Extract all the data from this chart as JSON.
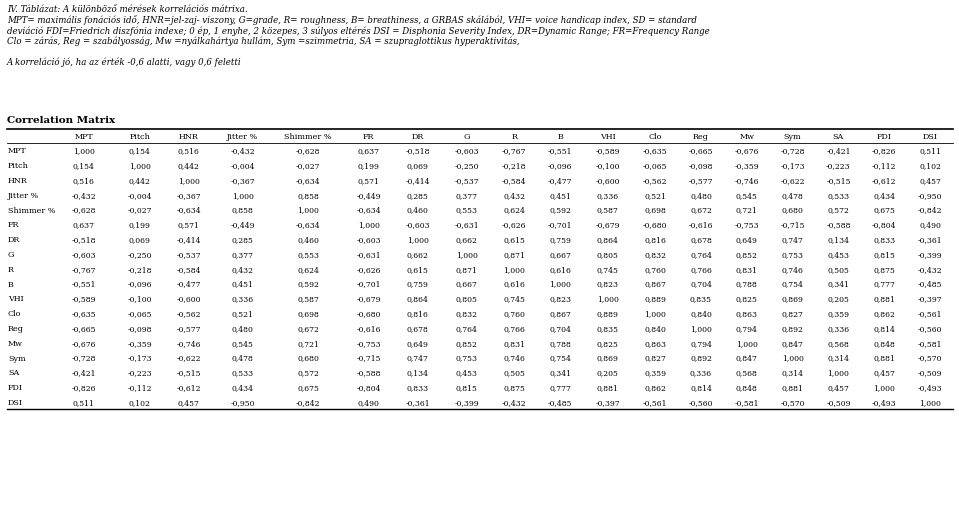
{
  "title_line1": "IV. Táblázat: A különböző mérések korrelációs mátrixa.",
  "title_line2": "MPT= maximális fonációs idő, HNR=jel-zaj- viszony, G=grade, R= roughness, B= breathiness, a GRBAS skálából, VHI= voice handicap index, SD = standard",
  "title_line3": "deviáció FDI=Friedrich diszfónia indexe; 0 ép, 1 enyhe, 2 közepes, 3 súlyos eltérés DSI = Disphonia Severity Index, DR=Dynamic Range; FR=Frequency Range",
  "title_line4": "Clo = zárás, Reg = szabályosság, Mw =nyálkahártya hullám, Sym =szimmetria, SA = szupraglottikus hyperaktivitás,",
  "title_line5": "A korreláció jó, ha az érték -0,6 alatti, vagy 0,6 feletti",
  "section_title": "Correlation Matrix",
  "columns": [
    "",
    "MPT",
    "Pitch",
    "HNR",
    "Jitter %",
    "Shimmer %",
    "FR",
    "DR",
    "G",
    "R",
    "B",
    "VHI",
    "Clo",
    "Reg",
    "Mw",
    "Sym",
    "SA",
    "FDI",
    "DSI"
  ],
  "rows": [
    [
      "MPT",
      "1,000",
      "0,154",
      "0,516",
      "-0,432",
      "-0,628",
      "0,637",
      "-0,518",
      "-0,603",
      "-0,767",
      "-0,551",
      "-0,589",
      "-0,635",
      "-0,665",
      "-0,676",
      "-0,728",
      "-0,421",
      "-0,826",
      "0,511"
    ],
    [
      "Pitch",
      "0,154",
      "1,000",
      "0,442",
      "-0,004",
      "-0,027",
      "0,199",
      "0,069",
      "-0,250",
      "-0,218",
      "-0,096",
      "-0,100",
      "-0,065",
      "-0,098",
      "-0,359",
      "-0,173",
      "-0,223",
      "-0,112",
      "0,102"
    ],
    [
      "HNR",
      "0,516",
      "0,442",
      "1,000",
      "-0,367",
      "-0,634",
      "0,571",
      "-0,414",
      "-0,537",
      "-0,584",
      "-0,477",
      "-0,600",
      "-0,562",
      "-0,577",
      "-0,746",
      "-0,622",
      "-0,515",
      "-0,612",
      "0,457"
    ],
    [
      "Jitter %",
      "-0,432",
      "-0,004",
      "-0,367",
      "1,000",
      "0,858",
      "-0,449",
      "0,285",
      "0,377",
      "0,432",
      "0,451",
      "0,336",
      "0,521",
      "0,480",
      "0,545",
      "0,478",
      "0,533",
      "0,434",
      "-0,950"
    ],
    [
      "Shimmer %",
      "-0,628",
      "-0,027",
      "-0,634",
      "0,858",
      "1,000",
      "-0,634",
      "0,460",
      "0,553",
      "0,624",
      "0,592",
      "0,587",
      "0,698",
      "0,672",
      "0,721",
      "0,680",
      "0,572",
      "0,675",
      "-0,842"
    ],
    [
      "FR",
      "0,637",
      "0,199",
      "0,571",
      "-0,449",
      "-0,634",
      "1,000",
      "-0,603",
      "-0,631",
      "-0,626",
      "-0,701",
      "-0,679",
      "-0,680",
      "-0,616",
      "-0,753",
      "-0,715",
      "-0,588",
      "-0,804",
      "0,490"
    ],
    [
      "DR",
      "-0,518",
      "0,069",
      "-0,414",
      "0,285",
      "0,460",
      "-0,603",
      "1,000",
      "0,662",
      "0,615",
      "0,759",
      "0,864",
      "0,816",
      "0,678",
      "0,649",
      "0,747",
      "0,134",
      "0,833",
      "-0,361"
    ],
    [
      "G",
      "-0,603",
      "-0,250",
      "-0,537",
      "0,377",
      "0,553",
      "-0,631",
      "0,662",
      "1,000",
      "0,871",
      "0,667",
      "0,805",
      "0,832",
      "0,764",
      "0,852",
      "0,753",
      "0,453",
      "0,815",
      "-0,399"
    ],
    [
      "R",
      "-0,767",
      "-0,218",
      "-0,584",
      "0,432",
      "0,624",
      "-0,626",
      "0,615",
      "0,871",
      "1,000",
      "0,616",
      "0,745",
      "0,760",
      "0,766",
      "0,831",
      "0,746",
      "0,505",
      "0,875",
      "-0,432"
    ],
    [
      "B",
      "-0,551",
      "-0,096",
      "-0,477",
      "0,451",
      "0,592",
      "-0,701",
      "0,759",
      "0,667",
      "0,616",
      "1,000",
      "0,823",
      "0,867",
      "0,704",
      "0,788",
      "0,754",
      "0,341",
      "0,777",
      "-0,485"
    ],
    [
      "VHI",
      "-0,589",
      "-0,100",
      "-0,600",
      "0,336",
      "0,587",
      "-0,679",
      "0,864",
      "0,805",
      "0,745",
      "0,823",
      "1,000",
      "0,889",
      "0,835",
      "0,825",
      "0,869",
      "0,205",
      "0,881",
      "-0,397"
    ],
    [
      "Clo",
      "-0,635",
      "-0,065",
      "-0,562",
      "0,521",
      "0,698",
      "-0,680",
      "0,816",
      "0,832",
      "0,760",
      "0,867",
      "0,889",
      "1,000",
      "0,840",
      "0,863",
      "0,827",
      "0,359",
      "0,862",
      "-0,561"
    ],
    [
      "Reg",
      "-0,665",
      "-0,098",
      "-0,577",
      "0,480",
      "0,672",
      "-0,616",
      "0,678",
      "0,764",
      "0,766",
      "0,704",
      "0,835",
      "0,840",
      "1,000",
      "0,794",
      "0,892",
      "0,336",
      "0,814",
      "-0,560"
    ],
    [
      "Mw",
      "-0,676",
      "-0,359",
      "-0,746",
      "0,545",
      "0,721",
      "-0,753",
      "0,649",
      "0,852",
      "0,831",
      "0,788",
      "0,825",
      "0,863",
      "0,794",
      "1,000",
      "0,847",
      "0,568",
      "0,848",
      "-0,581"
    ],
    [
      "Sym",
      "-0,728",
      "-0,173",
      "-0,622",
      "0,478",
      "0,680",
      "-0,715",
      "0,747",
      "0,753",
      "0,746",
      "0,754",
      "0,869",
      "0,827",
      "0,892",
      "0,847",
      "1,000",
      "0,314",
      "0,881",
      "-0,570"
    ],
    [
      "SA",
      "-0,421",
      "-0,223",
      "-0,515",
      "0,533",
      "0,572",
      "-0,588",
      "0,134",
      "0,453",
      "0,505",
      "0,341",
      "0,205",
      "0,359",
      "0,336",
      "0,568",
      "0,314",
      "1,000",
      "0,457",
      "-0,509"
    ],
    [
      "FDI",
      "-0,826",
      "-0,112",
      "-0,612",
      "0,434",
      "0,675",
      "-0,804",
      "0,833",
      "0,815",
      "0,875",
      "0,777",
      "0,881",
      "0,862",
      "0,814",
      "0,848",
      "0,881",
      "0,457",
      "1,000",
      "-0,493"
    ],
    [
      "DSI",
      "0,511",
      "0,102",
      "0,457",
      "-0,950",
      "-0,842",
      "0,490",
      "-0,361",
      "-0,399",
      "-0,432",
      "-0,485",
      "-0,397",
      "-0,561",
      "-0,560",
      "-0,581",
      "-0,570",
      "-0,509",
      "-0,493",
      "1,000"
    ]
  ],
  "bg_color": "#ffffff",
  "text_color": "#000000",
  "line_color": "#000000"
}
